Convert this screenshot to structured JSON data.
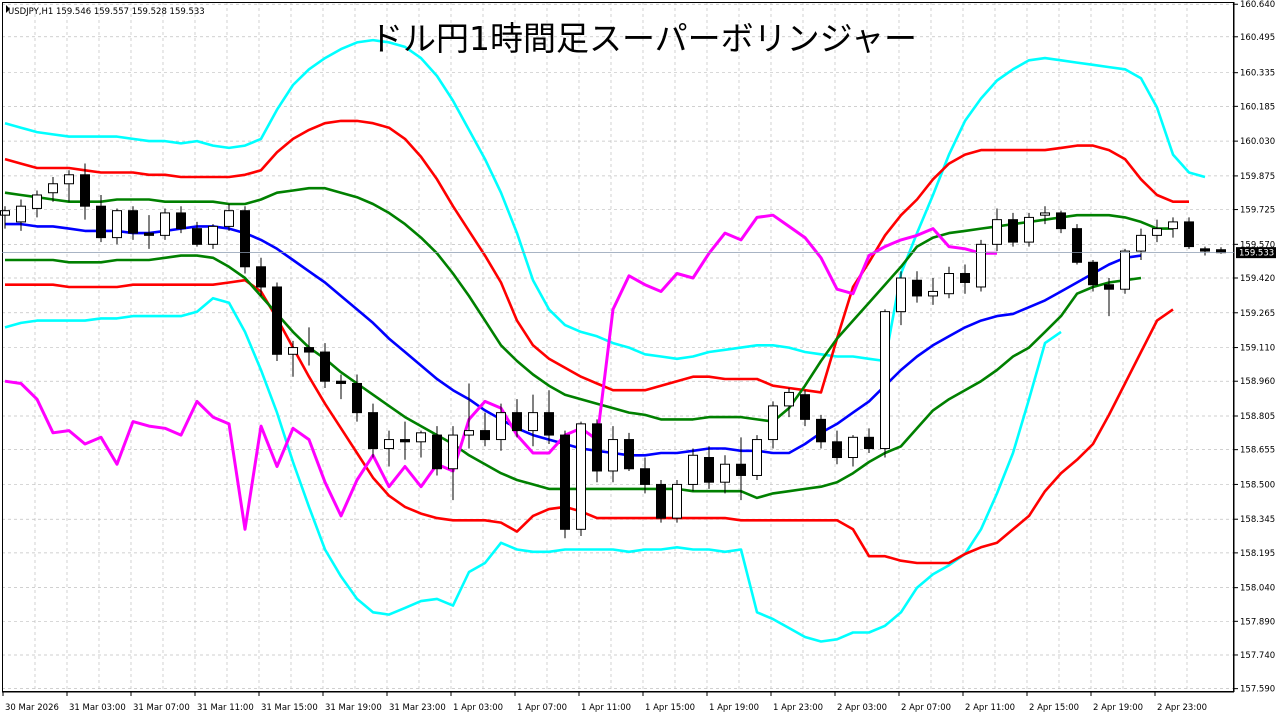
{
  "window": {
    "symbol_line": "USDJPY,H1  159.546 159.557 159.528 159.533"
  },
  "chart_data": {
    "type": "candlestick",
    "title": "ドル円1時間足スーパーボリンジャー",
    "symbol": "USDJPY",
    "timeframe": "H1",
    "ohlc_readout": {
      "open": 159.546,
      "high": 159.557,
      "low": 159.528,
      "close": 159.533
    },
    "current_price_label": "159.533",
    "ylim": [
      157.575,
      160.65
    ],
    "y_ticks": [
      "160.640",
      "160.495",
      "160.335",
      "160.185",
      "160.030",
      "159.875",
      "159.725",
      "159.570",
      "159.420",
      "159.265",
      "159.110",
      "158.960",
      "158.805",
      "158.655",
      "158.500",
      "158.345",
      "158.195",
      "158.040",
      "157.890",
      "157.740",
      "157.590"
    ],
    "x_ticks": [
      "30 Mar 2026",
      "31 Mar 03:00",
      "31 Mar 07:00",
      "31 Mar 11:00",
      "31 Mar 15:00",
      "31 Mar 19:00",
      "31 Mar 23:00",
      "1 Apr 03:00",
      "1 Apr 07:00",
      "1 Apr 11:00",
      "1 Apr 15:00",
      "1 Apr 19:00",
      "1 Apr 23:00",
      "2 Apr 03:00",
      "2 Apr 07:00",
      "2 Apr 11:00",
      "2 Apr 15:00",
      "2 Apr 19:00",
      "2 Apr 23:00"
    ],
    "grid": true,
    "colors": {
      "background": "#ffffff",
      "grid": "#c0c0c0",
      "candle_up": "#ffffff",
      "candle_down": "#000000",
      "candle_outline": "#000000",
      "mid_band": "#0000ff",
      "sigma1": "#008000",
      "sigma2": "#ff0000",
      "sigma3": "#00ffff",
      "lagging_span": "#ff00ff"
    },
    "candles": [
      {
        "o": 159.7,
        "h": 159.74,
        "l": 159.64,
        "c": 159.72
      },
      {
        "o": 159.67,
        "h": 159.77,
        "l": 159.63,
        "c": 159.74
      },
      {
        "o": 159.73,
        "h": 159.81,
        "l": 159.69,
        "c": 159.79
      },
      {
        "o": 159.8,
        "h": 159.87,
        "l": 159.76,
        "c": 159.84
      },
      {
        "o": 159.84,
        "h": 159.9,
        "l": 159.76,
        "c": 159.88
      },
      {
        "o": 159.88,
        "h": 159.93,
        "l": 159.68,
        "c": 159.74
      },
      {
        "o": 159.74,
        "h": 159.79,
        "l": 159.58,
        "c": 159.6
      },
      {
        "o": 159.6,
        "h": 159.73,
        "l": 159.57,
        "c": 159.72
      },
      {
        "o": 159.72,
        "h": 159.74,
        "l": 159.59,
        "c": 159.62
      },
      {
        "o": 159.62,
        "h": 159.7,
        "l": 159.55,
        "c": 159.61
      },
      {
        "o": 159.61,
        "h": 159.73,
        "l": 159.59,
        "c": 159.71
      },
      {
        "o": 159.71,
        "h": 159.74,
        "l": 159.62,
        "c": 159.64
      },
      {
        "o": 159.64,
        "h": 159.67,
        "l": 159.56,
        "c": 159.57
      },
      {
        "o": 159.57,
        "h": 159.66,
        "l": 159.55,
        "c": 159.65
      },
      {
        "o": 159.65,
        "h": 159.75,
        "l": 159.63,
        "c": 159.72
      },
      {
        "o": 159.72,
        "h": 159.74,
        "l": 159.44,
        "c": 159.47
      },
      {
        "o": 159.47,
        "h": 159.51,
        "l": 159.34,
        "c": 159.38
      },
      {
        "o": 159.38,
        "h": 159.4,
        "l": 159.05,
        "c": 159.08
      },
      {
        "o": 159.08,
        "h": 159.14,
        "l": 158.98,
        "c": 159.11
      },
      {
        "o": 159.11,
        "h": 159.2,
        "l": 159.03,
        "c": 159.09
      },
      {
        "o": 159.09,
        "h": 159.13,
        "l": 158.93,
        "c": 158.96
      },
      {
        "o": 158.96,
        "h": 158.99,
        "l": 158.88,
        "c": 158.95
      },
      {
        "o": 158.95,
        "h": 158.99,
        "l": 158.78,
        "c": 158.82
      },
      {
        "o": 158.82,
        "h": 158.86,
        "l": 158.62,
        "c": 158.66
      },
      {
        "o": 158.66,
        "h": 158.74,
        "l": 158.58,
        "c": 158.7
      },
      {
        "o": 158.7,
        "h": 158.78,
        "l": 158.61,
        "c": 158.69
      },
      {
        "o": 158.69,
        "h": 158.74,
        "l": 158.62,
        "c": 158.73
      },
      {
        "o": 158.72,
        "h": 158.76,
        "l": 158.54,
        "c": 158.57
      },
      {
        "o": 158.57,
        "h": 158.76,
        "l": 158.43,
        "c": 158.72
      },
      {
        "o": 158.72,
        "h": 158.95,
        "l": 158.66,
        "c": 158.74
      },
      {
        "o": 158.74,
        "h": 158.82,
        "l": 158.67,
        "c": 158.7
      },
      {
        "o": 158.7,
        "h": 158.86,
        "l": 158.65,
        "c": 158.82
      },
      {
        "o": 158.82,
        "h": 158.88,
        "l": 158.71,
        "c": 158.74
      },
      {
        "o": 158.74,
        "h": 158.9,
        "l": 158.67,
        "c": 158.82
      },
      {
        "o": 158.82,
        "h": 158.92,
        "l": 158.68,
        "c": 158.72
      },
      {
        "o": 158.72,
        "h": 158.74,
        "l": 158.26,
        "c": 158.3
      },
      {
        "o": 158.3,
        "h": 158.78,
        "l": 158.27,
        "c": 158.77
      },
      {
        "o": 158.77,
        "h": 158.79,
        "l": 158.51,
        "c": 158.56
      },
      {
        "o": 158.56,
        "h": 158.76,
        "l": 158.51,
        "c": 158.7
      },
      {
        "o": 158.7,
        "h": 158.73,
        "l": 158.56,
        "c": 158.57
      },
      {
        "o": 158.57,
        "h": 158.62,
        "l": 158.46,
        "c": 158.5
      },
      {
        "o": 158.5,
        "h": 158.52,
        "l": 158.33,
        "c": 158.35
      },
      {
        "o": 158.35,
        "h": 158.52,
        "l": 158.33,
        "c": 158.5
      },
      {
        "o": 158.5,
        "h": 158.66,
        "l": 158.47,
        "c": 158.63
      },
      {
        "o": 158.62,
        "h": 158.67,
        "l": 158.48,
        "c": 158.51
      },
      {
        "o": 158.51,
        "h": 158.63,
        "l": 158.46,
        "c": 158.59
      },
      {
        "o": 158.59,
        "h": 158.71,
        "l": 158.43,
        "c": 158.54
      },
      {
        "o": 158.54,
        "h": 158.72,
        "l": 158.52,
        "c": 158.7
      },
      {
        "o": 158.7,
        "h": 158.87,
        "l": 158.66,
        "c": 158.85
      },
      {
        "o": 158.85,
        "h": 158.93,
        "l": 158.8,
        "c": 158.91
      },
      {
        "o": 158.9,
        "h": 158.92,
        "l": 158.76,
        "c": 158.79
      },
      {
        "o": 158.79,
        "h": 158.81,
        "l": 158.66,
        "c": 158.69
      },
      {
        "o": 158.69,
        "h": 158.74,
        "l": 158.59,
        "c": 158.62
      },
      {
        "o": 158.62,
        "h": 158.72,
        "l": 158.58,
        "c": 158.71
      },
      {
        "o": 158.71,
        "h": 158.75,
        "l": 158.64,
        "c": 158.66
      },
      {
        "o": 158.66,
        "h": 159.28,
        "l": 158.62,
        "c": 159.27
      },
      {
        "o": 159.27,
        "h": 159.45,
        "l": 159.21,
        "c": 159.42
      },
      {
        "o": 159.41,
        "h": 159.45,
        "l": 159.31,
        "c": 159.34
      },
      {
        "o": 159.34,
        "h": 159.42,
        "l": 159.3,
        "c": 159.36
      },
      {
        "o": 159.35,
        "h": 159.47,
        "l": 159.33,
        "c": 159.44
      },
      {
        "o": 159.44,
        "h": 159.48,
        "l": 159.35,
        "c": 159.4
      },
      {
        "o": 159.38,
        "h": 159.59,
        "l": 159.36,
        "c": 159.57
      },
      {
        "o": 159.57,
        "h": 159.73,
        "l": 159.54,
        "c": 159.68
      },
      {
        "o": 159.68,
        "h": 159.71,
        "l": 159.56,
        "c": 159.58
      },
      {
        "o": 159.58,
        "h": 159.71,
        "l": 159.56,
        "c": 159.69
      },
      {
        "o": 159.7,
        "h": 159.74,
        "l": 159.66,
        "c": 159.71
      },
      {
        "o": 159.71,
        "h": 159.72,
        "l": 159.62,
        "c": 159.64
      },
      {
        "o": 159.64,
        "h": 159.66,
        "l": 159.48,
        "c": 159.49
      },
      {
        "o": 159.49,
        "h": 159.5,
        "l": 159.36,
        "c": 159.39
      },
      {
        "o": 159.39,
        "h": 159.42,
        "l": 159.25,
        "c": 159.37
      },
      {
        "o": 159.37,
        "h": 159.55,
        "l": 159.35,
        "c": 159.54
      },
      {
        "o": 159.54,
        "h": 159.64,
        "l": 159.5,
        "c": 159.61
      },
      {
        "o": 159.61,
        "h": 159.68,
        "l": 159.58,
        "c": 159.64
      },
      {
        "o": 159.64,
        "h": 159.69,
        "l": 159.6,
        "c": 159.67
      },
      {
        "o": 159.67,
        "h": 159.69,
        "l": 159.55,
        "c": 159.56
      },
      {
        "o": 159.55,
        "h": 159.56,
        "l": 159.52,
        "c": 159.54
      },
      {
        "o": 159.546,
        "h": 159.557,
        "l": 159.528,
        "c": 159.533
      }
    ],
    "bands": {
      "sigma3_upper": [
        160.11,
        160.09,
        160.07,
        160.06,
        160.05,
        160.05,
        160.05,
        160.05,
        160.04,
        160.03,
        160.03,
        160.02,
        160.03,
        160.01,
        160.0,
        160.01,
        160.04,
        160.17,
        160.28,
        160.35,
        160.4,
        160.44,
        160.47,
        160.48,
        160.47,
        160.45,
        160.4,
        160.32,
        160.21,
        160.08,
        159.95,
        159.8,
        159.62,
        159.41,
        159.28,
        159.21,
        159.18,
        159.16,
        159.13,
        159.11,
        159.08,
        159.07,
        159.06,
        159.07,
        159.09,
        159.1,
        159.11,
        159.12,
        159.12,
        159.11,
        159.09,
        159.08,
        159.07,
        159.07,
        159.06,
        159.05,
        159.44,
        159.62,
        159.79,
        159.97,
        160.12,
        160.22,
        160.3,
        160.35,
        160.39,
        160.4,
        160.39,
        160.38,
        160.37,
        160.36,
        160.35,
        160.31,
        160.18,
        159.97,
        159.89,
        159.87
      ],
      "sigma2_upper": [
        159.95,
        159.93,
        159.91,
        159.91,
        159.91,
        159.9,
        159.89,
        159.89,
        159.89,
        159.88,
        159.88,
        159.87,
        159.87,
        159.87,
        159.87,
        159.88,
        159.9,
        159.98,
        160.04,
        160.08,
        160.11,
        160.12,
        160.12,
        160.11,
        160.09,
        160.04,
        159.96,
        159.86,
        159.74,
        159.63,
        159.52,
        159.4,
        159.23,
        159.12,
        159.06,
        159.02,
        158.98,
        158.95,
        158.92,
        158.92,
        158.92,
        158.94,
        158.96,
        158.98,
        158.98,
        158.97,
        158.97,
        158.97,
        158.94,
        158.93,
        158.92,
        158.91,
        159.15,
        159.38,
        159.49,
        159.61,
        159.7,
        159.77,
        159.86,
        159.93,
        159.97,
        159.99,
        159.99,
        159.99,
        159.99,
        159.99,
        160.0,
        160.01,
        160.01,
        159.99,
        159.95,
        159.86,
        159.79,
        159.76,
        159.76
      ],
      "sigma1_upper": [
        159.8,
        159.79,
        159.78,
        159.77,
        159.76,
        159.76,
        159.76,
        159.77,
        159.77,
        159.77,
        159.76,
        159.76,
        159.76,
        159.76,
        159.75,
        159.75,
        159.77,
        159.8,
        159.81,
        159.82,
        159.82,
        159.8,
        159.78,
        159.75,
        159.71,
        159.66,
        159.6,
        159.53,
        159.44,
        159.34,
        159.23,
        159.12,
        159.05,
        158.99,
        158.94,
        158.9,
        158.88,
        158.86,
        158.84,
        158.82,
        158.81,
        158.79,
        158.79,
        158.79,
        158.8,
        158.8,
        158.8,
        158.79,
        158.78,
        158.84,
        158.94,
        159.05,
        159.15,
        159.23,
        159.31,
        159.39,
        159.47,
        159.56,
        159.6,
        159.62,
        159.63,
        159.64,
        159.65,
        159.66,
        159.67,
        159.68,
        159.69,
        159.7,
        159.7,
        159.7,
        159.69,
        159.67,
        159.64,
        159.64
      ],
      "mid": [
        159.66,
        159.66,
        159.65,
        159.65,
        159.64,
        159.63,
        159.63,
        159.63,
        159.62,
        159.62,
        159.63,
        159.64,
        159.65,
        159.65,
        159.64,
        159.62,
        159.59,
        159.55,
        159.5,
        159.45,
        159.4,
        159.34,
        159.28,
        159.22,
        159.15,
        159.09,
        159.03,
        158.97,
        158.92,
        158.88,
        158.83,
        158.79,
        158.75,
        158.72,
        158.7,
        158.68,
        158.66,
        158.65,
        158.64,
        158.63,
        158.63,
        158.64,
        158.64,
        158.65,
        158.66,
        158.66,
        158.65,
        158.65,
        158.64,
        158.64,
        158.68,
        158.73,
        158.77,
        158.82,
        158.87,
        158.94,
        159.01,
        159.07,
        159.12,
        159.16,
        159.2,
        159.23,
        159.25,
        159.26,
        159.29,
        159.32,
        159.36,
        159.4,
        159.44,
        159.48,
        159.51,
        159.52
      ],
      "sigma1_lower": [
        159.5,
        159.5,
        159.5,
        159.5,
        159.49,
        159.49,
        159.49,
        159.5,
        159.5,
        159.5,
        159.51,
        159.52,
        159.52,
        159.51,
        159.47,
        159.42,
        159.34,
        159.26,
        159.18,
        159.11,
        159.06,
        159.0,
        158.95,
        158.9,
        158.85,
        158.8,
        158.76,
        158.72,
        158.68,
        158.63,
        158.59,
        158.55,
        158.52,
        158.5,
        158.48,
        158.48,
        158.48,
        158.48,
        158.48,
        158.48,
        158.48,
        158.48,
        158.48,
        158.47,
        158.47,
        158.47,
        158.47,
        158.44,
        158.46,
        158.47,
        158.48,
        158.49,
        158.51,
        158.55,
        158.6,
        158.64,
        158.67,
        158.75,
        158.83,
        158.88,
        158.92,
        158.96,
        159.01,
        159.07,
        159.11,
        159.18,
        159.25,
        159.35,
        159.38,
        159.4,
        159.41,
        159.42
      ],
      "sigma2_lower": [
        159.39,
        159.39,
        159.39,
        159.39,
        159.38,
        159.38,
        159.38,
        159.38,
        159.39,
        159.39,
        159.39,
        159.39,
        159.39,
        159.39,
        159.4,
        159.41,
        159.36,
        159.24,
        159.11,
        158.98,
        158.86,
        158.75,
        158.64,
        158.53,
        158.45,
        158.4,
        158.37,
        158.35,
        158.34,
        158.34,
        158.34,
        158.33,
        158.29,
        158.36,
        158.39,
        158.4,
        158.38,
        158.35,
        158.35,
        158.35,
        158.35,
        158.35,
        158.35,
        158.35,
        158.35,
        158.35,
        158.34,
        158.34,
        158.34,
        158.34,
        158.34,
        158.34,
        158.34,
        158.3,
        158.18,
        158.18,
        158.16,
        158.15,
        158.15,
        158.15,
        158.19,
        158.22,
        158.24,
        158.3,
        158.36,
        158.47,
        158.55,
        158.61,
        158.68,
        158.81,
        158.95,
        159.09,
        159.23,
        159.28
      ],
      "sigma3_lower": [
        159.2,
        159.22,
        159.23,
        159.23,
        159.23,
        159.23,
        159.24,
        159.24,
        159.25,
        159.25,
        159.25,
        159.25,
        159.27,
        159.33,
        159.31,
        159.18,
        159.01,
        158.82,
        158.6,
        158.4,
        158.21,
        158.09,
        157.99,
        157.93,
        157.92,
        157.95,
        157.98,
        157.99,
        157.96,
        158.11,
        158.15,
        158.24,
        158.21,
        158.2,
        158.2,
        158.21,
        158.21,
        158.21,
        158.21,
        158.2,
        158.21,
        158.21,
        158.22,
        158.21,
        158.21,
        158.2,
        158.21,
        157.93,
        157.9,
        157.86,
        157.82,
        157.8,
        157.81,
        157.84,
        157.84,
        157.87,
        157.93,
        158.04,
        158.1,
        158.14,
        158.19,
        158.3,
        158.46,
        158.64,
        158.88,
        159.13,
        159.18
      ]
    },
    "lagging_span": [
      158.96,
      158.95,
      158.88,
      158.73,
      158.74,
      158.68,
      158.71,
      158.59,
      158.78,
      158.76,
      158.75,
      158.72,
      158.87,
      158.8,
      158.77,
      158.3,
      158.76,
      158.58,
      158.75,
      158.7,
      158.51,
      158.36,
      158.52,
      158.63,
      158.49,
      158.58,
      158.49,
      158.59,
      158.56,
      158.79,
      158.87,
      158.84,
      158.72,
      158.64,
      158.64,
      158.72,
      158.75,
      158.7,
      159.28,
      159.43,
      159.39,
      159.36,
      159.44,
      159.42,
      159.53,
      159.62,
      159.59,
      159.69,
      159.7,
      159.65,
      159.6,
      159.51,
      159.37,
      159.35,
      159.52,
      159.56,
      159.59,
      159.61,
      159.64,
      159.56,
      159.55,
      159.53,
      159.53
    ]
  }
}
